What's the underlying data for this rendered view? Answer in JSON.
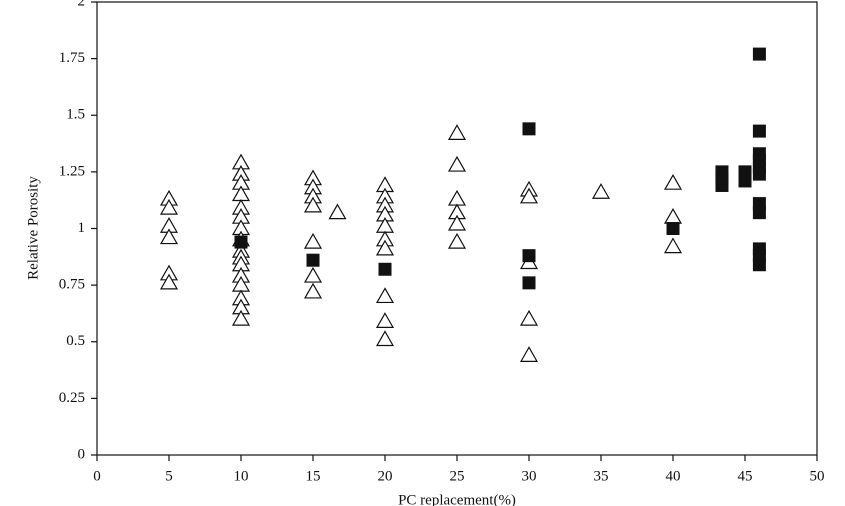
{
  "chart_data": {
    "type": "scatter",
    "x_label": "PC replacement(%)",
    "y_label": "Relative Porosity",
    "xlim": [
      0,
      50
    ],
    "xticks": [
      0,
      5,
      10,
      15,
      20,
      25,
      30,
      35,
      40,
      45,
      50
    ],
    "ylim": [
      0,
      2
    ],
    "yticks": [
      0,
      0.25,
      0.5,
      0.75,
      1,
      1.25,
      1.5,
      1.75,
      2
    ],
    "grid": false,
    "series": [
      {
        "color": "#111111",
        "marker": "open-triangle",
        "x": [
          5,
          5,
          5,
          5,
          5,
          5,
          10,
          10,
          10,
          10,
          10,
          10,
          10,
          10,
          10,
          10,
          10,
          10,
          10,
          10,
          10,
          10,
          15,
          15,
          15,
          15,
          15,
          15,
          15,
          16.7,
          20,
          20,
          20,
          20,
          20,
          20,
          20,
          20,
          20,
          20,
          25,
          25,
          25,
          25,
          25,
          25,
          30,
          30,
          30,
          30,
          30,
          35,
          40,
          40,
          40
        ],
        "values": [
          1.13,
          1.09,
          1.01,
          0.96,
          0.8,
          0.76,
          1.29,
          1.24,
          1.2,
          1.15,
          1.09,
          1.05,
          1.0,
          0.95,
          0.9,
          0.87,
          0.84,
          0.79,
          0.75,
          0.69,
          0.65,
          0.6,
          1.22,
          1.18,
          1.14,
          1.1,
          0.94,
          0.79,
          0.72,
          1.07,
          1.19,
          1.14,
          1.1,
          1.06,
          1.01,
          0.95,
          0.91,
          0.7,
          0.59,
          0.51,
          1.42,
          1.28,
          1.13,
          1.07,
          1.02,
          0.94,
          1.17,
          1.14,
          0.85,
          0.6,
          0.44,
          1.16,
          1.2,
          1.05,
          0.92
        ]
      },
      {
        "color": "#111111",
        "marker": "filled-square",
        "x": [
          10,
          15,
          20,
          30,
          30,
          30,
          40,
          43.4,
          43.4,
          43.4,
          45,
          45,
          46,
          46,
          46,
          46,
          46,
          46,
          46,
          46,
          46,
          46,
          46
        ],
        "values": [
          0.94,
          0.86,
          0.82,
          1.44,
          0.88,
          0.76,
          1.0,
          1.25,
          1.22,
          1.19,
          1.25,
          1.21,
          1.77,
          1.43,
          1.33,
          1.3,
          1.27,
          1.24,
          1.11,
          1.07,
          0.91,
          0.88,
          0.84
        ]
      }
    ]
  }
}
